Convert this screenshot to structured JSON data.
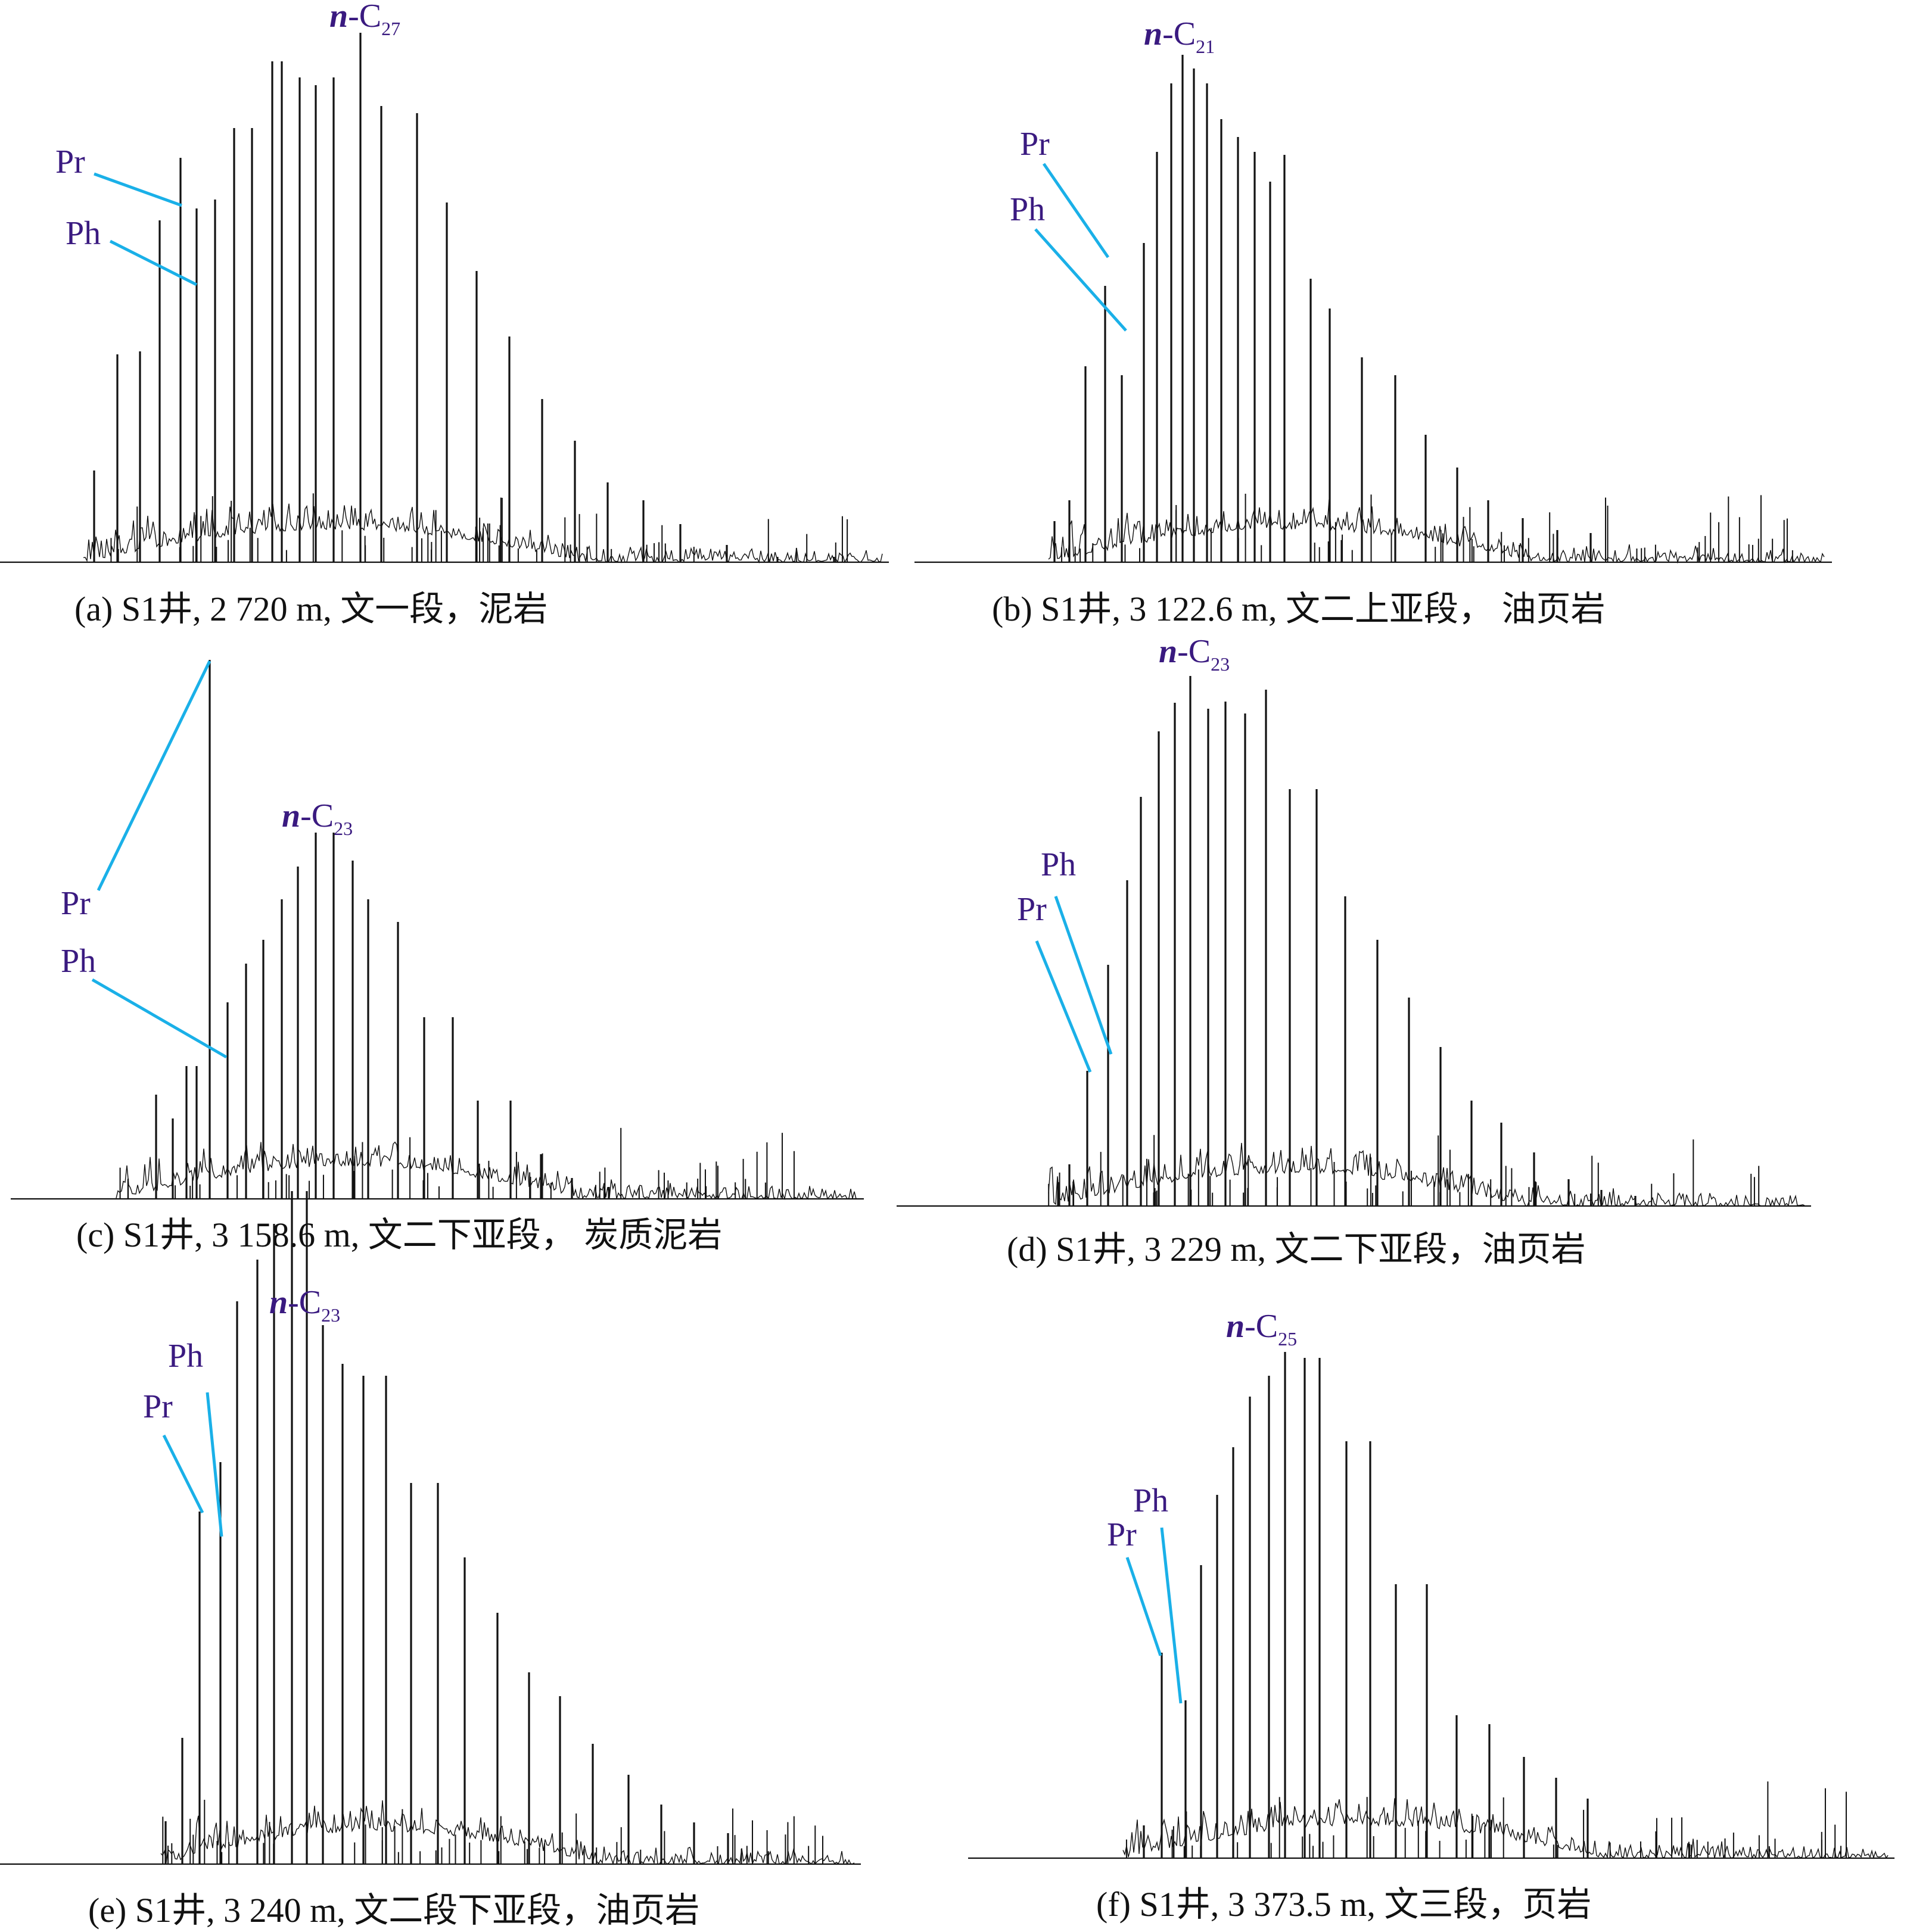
{
  "colors": {
    "trace": "#111111",
    "label": "#3a1a80",
    "leader": "#1ab0e8",
    "baseline": "#111111"
  },
  "chart_data": [
    {
      "type": "line",
      "panel": "a",
      "caption": "(a) S1井, 2 720 m, 文一段，泥岩",
      "annotations": [
        {
          "text": "Pr",
          "peak": "Pr"
        },
        {
          "text": "Ph",
          "peak": "Ph"
        },
        {
          "prefix": "n",
          "dash": "-",
          "main": "C",
          "sub": "27",
          "peak": "n-C27"
        }
      ]
    },
    {
      "type": "line",
      "panel": "b",
      "caption": "(b) S1井, 3 122.6 m, 文二上亚段， 油页岩",
      "annotations": [
        {
          "text": "Pr",
          "peak": "Pr"
        },
        {
          "text": "Ph",
          "peak": "Ph"
        },
        {
          "prefix": "n",
          "dash": "-",
          "main": "C",
          "sub": "21",
          "peak": "n-C21"
        }
      ]
    },
    {
      "type": "line",
      "panel": "c",
      "caption": "(c) S1井, 3 158.6 m, 文二下亚段， 炭质泥岩",
      "annotations": [
        {
          "text": "Pr",
          "peak": "Pr"
        },
        {
          "text": "Ph",
          "peak": "Ph"
        },
        {
          "prefix": "n",
          "dash": "-",
          "main": "C",
          "sub": "23",
          "peak": "n-C23"
        }
      ]
    },
    {
      "type": "line",
      "panel": "d",
      "caption": "(d) S1井, 3 229 m, 文二下亚段，油页岩",
      "annotations": [
        {
          "text": "Ph",
          "peak": "Ph"
        },
        {
          "text": "Pr",
          "peak": "Pr"
        },
        {
          "prefix": "n",
          "dash": "-",
          "main": "C",
          "sub": "23",
          "peak": "n-C23"
        }
      ]
    },
    {
      "type": "line",
      "panel": "e",
      "caption": "(e) S1井, 3 240 m, 文二段下亚段，油页岩",
      "annotations": [
        {
          "text": "Ph",
          "peak": "Ph"
        },
        {
          "text": "Pr",
          "peak": "Pr"
        },
        {
          "prefix": "n",
          "dash": "-",
          "main": "C",
          "sub": "23",
          "peak": "n-C23"
        }
      ]
    },
    {
      "type": "line",
      "panel": "f",
      "caption": "(f) S1井, 3 373.5 m, 文三段，页岩",
      "annotations": [
        {
          "text": "Ph",
          "peak": "Ph"
        },
        {
          "text": "Pr",
          "peak": "Pr"
        },
        {
          "prefix": "n",
          "dash": "-",
          "main": "C",
          "sub": "25",
          "peak": "n-C25"
        }
      ]
    }
  ]
}
